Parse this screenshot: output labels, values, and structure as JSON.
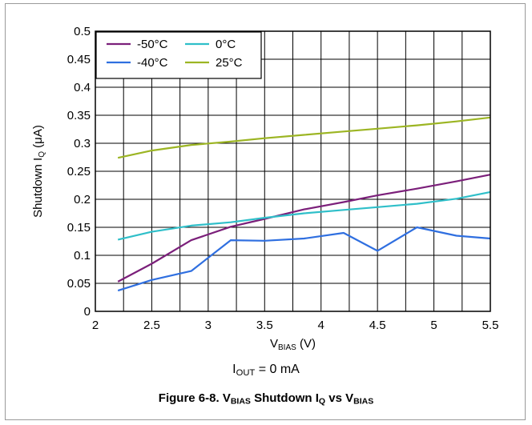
{
  "chart_data": {
    "type": "line",
    "title": "",
    "xlabel": {
      "main": "V",
      "sub": "BIAS",
      "rest": " (V)"
    },
    "ylabel": {
      "main": "Shutdown I",
      "sub": "Q",
      "rest": " (μA)"
    },
    "xlim": [
      2,
      5.5
    ],
    "ylim": [
      0,
      0.5
    ],
    "x_ticks": [
      "2",
      "2.5",
      "3",
      "3.5",
      "4",
      "4.5",
      "5",
      "5.5"
    ],
    "y_ticks": [
      "0",
      "0.05",
      "0.1",
      "0.15",
      "0.2",
      "0.25",
      "0.3",
      "0.35",
      "0.4",
      "0.45",
      "0.5"
    ],
    "grid": true,
    "legend_position": "top-left",
    "series": [
      {
        "name": "-50°C",
        "color": "#7b1f7a",
        "x": [
          2.2,
          2.5,
          2.85,
          3.2,
          3.5,
          3.85,
          4.2,
          4.5,
          4.85,
          5.2,
          5.5
        ],
        "y": [
          0.053,
          0.085,
          0.127,
          0.151,
          0.165,
          0.182,
          0.195,
          0.207,
          0.219,
          0.232,
          0.244
        ]
      },
      {
        "name": "-40°C",
        "color": "#2f6fe0",
        "x": [
          2.2,
          2.5,
          2.85,
          3.2,
          3.5,
          3.85,
          4.2,
          4.5,
          4.85,
          5.2,
          5.5
        ],
        "y": [
          0.037,
          0.056,
          0.072,
          0.127,
          0.126,
          0.13,
          0.14,
          0.108,
          0.15,
          0.135,
          0.13
        ]
      },
      {
        "name": "0°C",
        "color": "#2fbfc9",
        "x": [
          2.2,
          2.5,
          2.85,
          3.2,
          3.5,
          3.85,
          4.2,
          4.5,
          4.85,
          5.2,
          5.5
        ],
        "y": [
          0.128,
          0.142,
          0.153,
          0.159,
          0.167,
          0.175,
          0.181,
          0.186,
          0.192,
          0.201,
          0.213
        ]
      },
      {
        "name": "25°C",
        "color": "#9cb523",
        "x": [
          2.2,
          2.5,
          2.85,
          3.2,
          3.5,
          3.85,
          4.2,
          4.5,
          4.85,
          5.2,
          5.5
        ],
        "y": [
          0.274,
          0.287,
          0.297,
          0.303,
          0.309,
          0.315,
          0.321,
          0.326,
          0.332,
          0.339,
          0.346
        ]
      }
    ]
  },
  "condition": {
    "main": "I",
    "sub": "OUT",
    "rest": " = 0 mA"
  },
  "caption": {
    "prefix": "Figure 6-8. V",
    "sub1": "BIAS",
    "mid1": " Shutdown I",
    "sub2": "Q",
    "mid2": " vs V",
    "sub3": "BIAS"
  }
}
